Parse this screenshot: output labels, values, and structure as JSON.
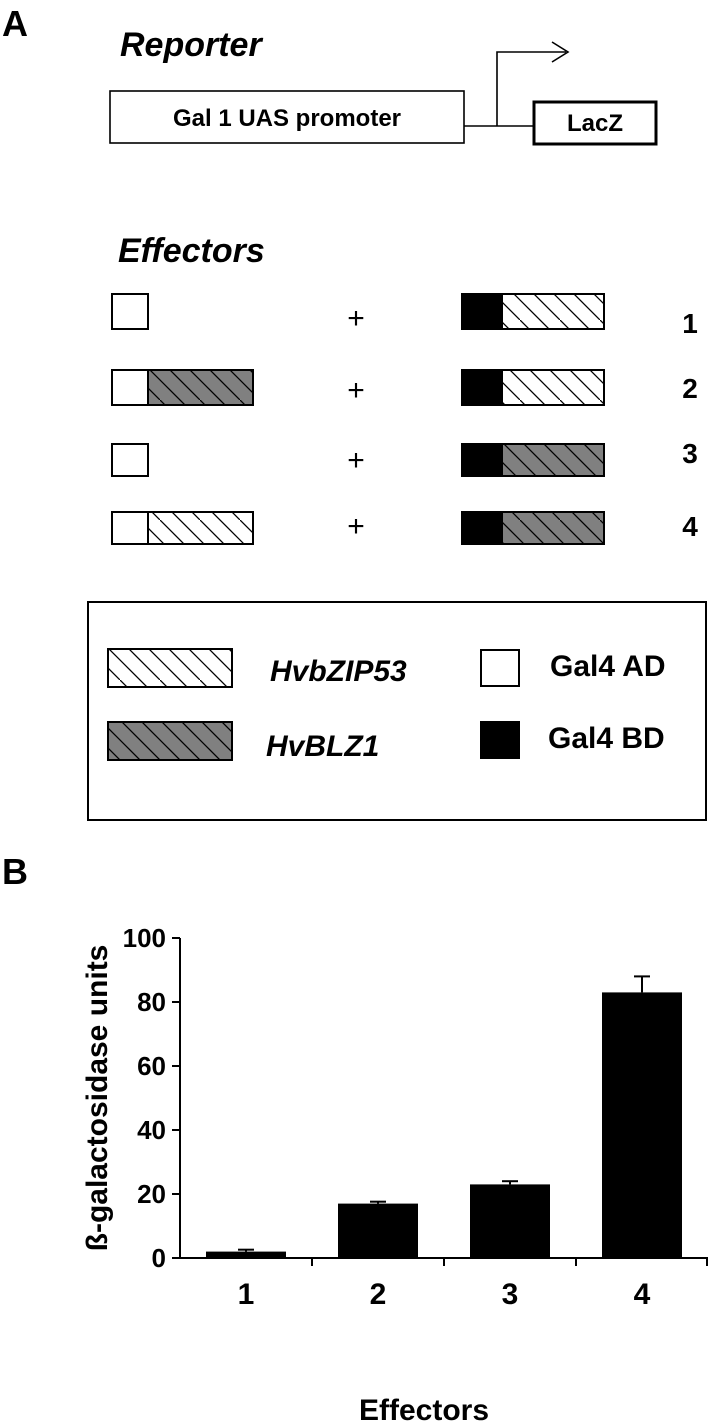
{
  "panel_a": {
    "label": "A",
    "reporter": {
      "heading": "Reporter",
      "promoter": "Gal 1 UAS promoter",
      "gene": "LacZ"
    },
    "effectors": {
      "heading": "Effectors",
      "plus": "+",
      "rows": [
        {
          "number": "1",
          "ad_fusion": "none",
          "bd_fusion": "HvbZIP53"
        },
        {
          "number": "2",
          "ad_fusion": "HvBLZ1",
          "bd_fusion": "HvbZIP53"
        },
        {
          "number": "3",
          "ad_fusion": "none",
          "bd_fusion": "HvBLZ1"
        },
        {
          "number": "4",
          "ad_fusion": "HvbZIP53",
          "bd_fusion": "HvBLZ1"
        }
      ]
    },
    "legend": {
      "hvbzip53": "HvbZIP53",
      "hvblz1": "HvBLZ1",
      "gal4_ad": "Gal4 AD",
      "gal4_bd": "Gal4 BD"
    },
    "colors": {
      "hvbzip53_fill": "#ffffff",
      "hvblz1_fill": "#808080",
      "ad_fill": "#ffffff",
      "bd_fill": "#000000"
    }
  },
  "panel_b": {
    "label": "B"
  },
  "chart_data": {
    "type": "bar",
    "categories": [
      "1",
      "2",
      "3",
      "4"
    ],
    "values": [
      2,
      17,
      23,
      83
    ],
    "errors": [
      0.6,
      0.6,
      1.0,
      5
    ],
    "xlabel": "Effectors",
    "ylabel": "ß-galactosidase units",
    "ylim": [
      0,
      100
    ],
    "yticks": [
      "0",
      "20",
      "40",
      "60",
      "80",
      "100"
    ],
    "bar_color": "#000000",
    "grid": false
  }
}
